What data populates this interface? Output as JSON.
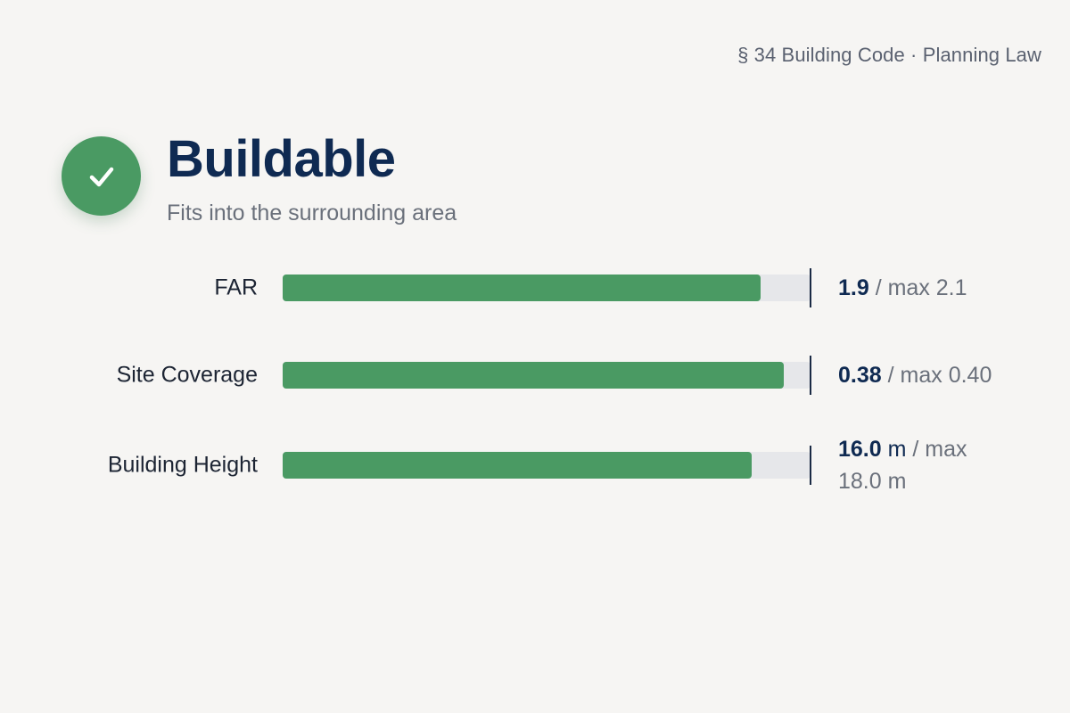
{
  "header": {
    "law_reference": "§ 34 Building Code · Planning Law"
  },
  "status": {
    "icon": "check-icon",
    "title": "Buildable",
    "subtitle": "Fits into the surrounding area",
    "color": "#4a9a63"
  },
  "metrics": [
    {
      "label": "FAR",
      "value": "1.9",
      "unit": "",
      "separator": " / max ",
      "max": "2.1",
      "max_unit": "",
      "fill_ratio": 0.905
    },
    {
      "label": "Site Coverage",
      "value": "0.38",
      "unit": "",
      "separator": " / max ",
      "max": "0.40",
      "max_unit": "",
      "fill_ratio": 0.95
    },
    {
      "label": "Building Height",
      "value": "16.0",
      "unit": " m",
      "separator": " / max ",
      "max": "18.0",
      "max_unit": " m",
      "fill_ratio": 0.889
    }
  ],
  "colors": {
    "accent": "#4a9a63",
    "title": "#0f2a52",
    "track": "#e6e7ea",
    "background": "#f6f5f3"
  }
}
